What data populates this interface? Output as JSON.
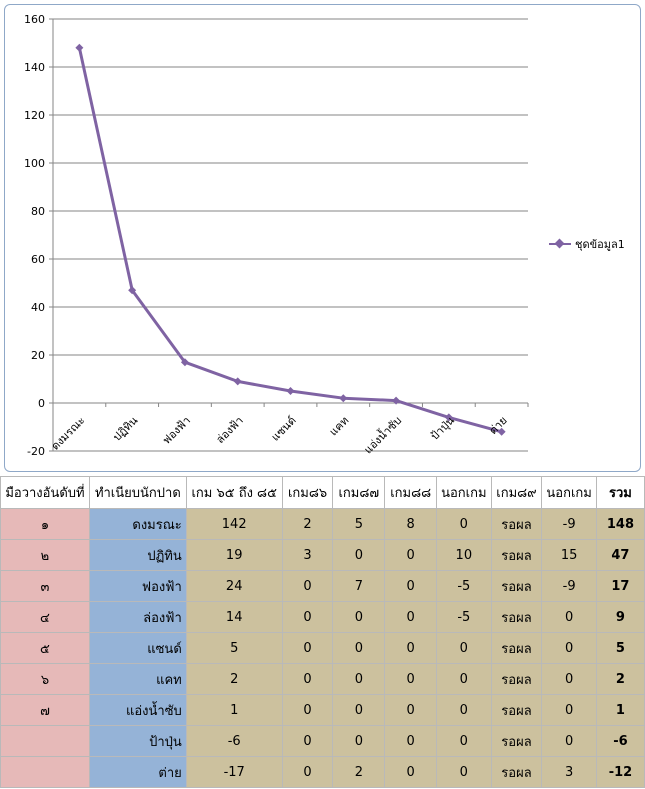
{
  "chart_data": {
    "type": "line",
    "categories": [
      "ดงมรณะ",
      "ปฏิทิน",
      "ฟองฟ้า",
      "ล่องฟ้า",
      "แซนด์",
      "แคท",
      "แอ่งน้ำซับ",
      "ป้าปุ่น",
      "ต่าย"
    ],
    "series": [
      {
        "name": "ชุดข้อมูล1",
        "values": [
          148,
          47,
          17,
          9,
          5,
          2,
          1,
          -6,
          -12
        ],
        "color": "#7f63a3"
      }
    ],
    "yticks": [
      "-20",
      "0",
      "20",
      "40",
      "60",
      "80",
      "100",
      "120",
      "140",
      "160"
    ],
    "ylim": [
      -20,
      160
    ],
    "grid": true,
    "legend_position": "right"
  },
  "table": {
    "headers": [
      "มือวางอันดับที่",
      "ทำเนียบนักปาด",
      "เกม ๖๕ ถึง ๘๕",
      "เกม๘๖",
      "เกม๘๗",
      "เกม๘๘",
      "นอกเกม",
      "เกม๘๙",
      "นอกเกม",
      "รวม"
    ],
    "rows": [
      [
        "๑",
        "ดงมรณะ",
        "142",
        "2",
        "5",
        "8",
        "0",
        "รอผล",
        "-9",
        "148"
      ],
      [
        "๒",
        "ปฏิทิน",
        "19",
        "3",
        "0",
        "0",
        "10",
        "รอผล",
        "15",
        "47"
      ],
      [
        "๓",
        "ฟองฟ้า",
        "24",
        "0",
        "7",
        "0",
        "-5",
        "รอผล",
        "-9",
        "17"
      ],
      [
        "๔",
        "ล่องฟ้า",
        "14",
        "0",
        "0",
        "0",
        "-5",
        "รอผล",
        "0",
        "9"
      ],
      [
        "๕",
        "แซนด์",
        "5",
        "0",
        "0",
        "0",
        "0",
        "รอผล",
        "0",
        "5"
      ],
      [
        "๖",
        "แคท",
        "2",
        "0",
        "0",
        "0",
        "0",
        "รอผล",
        "0",
        "2"
      ],
      [
        "๗",
        "แอ่งน้ำซับ",
        "1",
        "0",
        "0",
        "0",
        "0",
        "รอผล",
        "0",
        "1"
      ],
      [
        "",
        "ป้าปุ่น",
        "-6",
        "0",
        "0",
        "0",
        "0",
        "รอผล",
        "0",
        "-6"
      ],
      [
        "",
        "ต่าย",
        "-17",
        "0",
        "2",
        "0",
        "0",
        "รอผล",
        "3",
        "-12"
      ]
    ]
  }
}
